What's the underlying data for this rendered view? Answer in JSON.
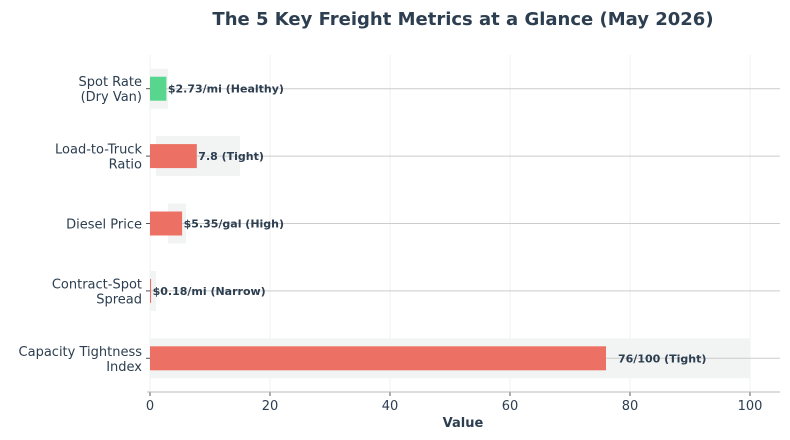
{
  "chart_data": {
    "type": "bar",
    "orientation": "horizontal",
    "title": "The 5 Key Freight Metrics at a Glance (May 2026)",
    "xlabel": "Value",
    "ylabel": "",
    "xlim": [
      0,
      105
    ],
    "x_ticks": [
      "0",
      "20",
      "40",
      "60",
      "80",
      "100"
    ],
    "grid": "vertical",
    "categories": [
      [
        "Spot Rate",
        "(Dry Van)"
      ],
      [
        "Load-to-Truck",
        "Ratio"
      ],
      [
        "Diesel Price"
      ],
      [
        "Contract-Spot",
        "Spread"
      ],
      [
        "Capacity Tightness",
        "Index"
      ]
    ],
    "values": [
      2.73,
      7.8,
      5.35,
      0.18,
      76
    ],
    "reference_ranges": [
      [
        0,
        3
      ],
      [
        1,
        15
      ],
      [
        3,
        6
      ],
      [
        0,
        1
      ],
      [
        0,
        100
      ]
    ],
    "data_labels": [
      "$2.73/mi (Healthy)",
      "7.8 (Tight)",
      "$5.35/gal (High)",
      "$0.18/mi (Narrow)",
      "76/100 (Tight)"
    ],
    "bar_colors": [
      "#58d68d",
      "#ec7063",
      "#ec7063",
      "#ec7063",
      "#ec7063"
    ],
    "reference_color": "#f2f4f4",
    "text_color": "#2c3e50"
  }
}
